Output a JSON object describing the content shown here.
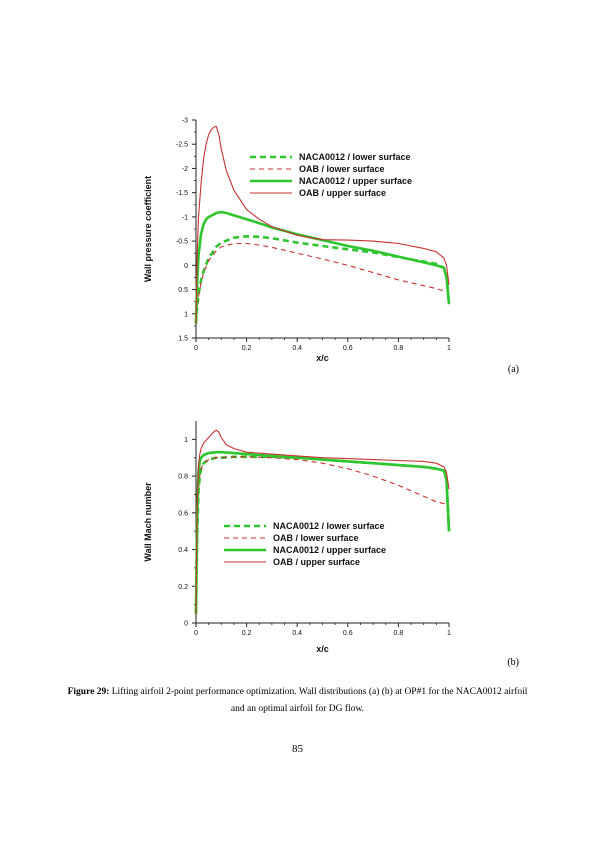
{
  "figure": {
    "label_a": "(a)",
    "label_b": "(b)",
    "caption_bold": "Figure 29:",
    "caption_text": " Lifting airfoil 2-point performance optimization. Wall distributions (a) (b) at OP#1 for the NACA0012 airfoil and an optimal airfoil for DG flow.",
    "page_number": "85"
  },
  "colors": {
    "naca": "#2fc52f",
    "oab": "#c83232"
  },
  "chart_data": [
    {
      "id": "a",
      "type": "line",
      "title": "",
      "xlabel": "x/c",
      "ylabel": "Wall pressure coefficient",
      "xlim": [
        0,
        1
      ],
      "ylim": [
        1.5,
        -3
      ],
      "y_inverted": true,
      "xticks": [
        "0",
        "0.2",
        "0.4",
        "0.6",
        "0.8",
        "1"
      ],
      "yticks": [
        "-3",
        "-2.5",
        "-2",
        "-1.5",
        "-1",
        "-0.5",
        "0",
        "0.5",
        "1",
        "1.5"
      ],
      "legend_position": "top-right",
      "series": [
        {
          "name": "NACA0012 / lower surface",
          "color": "#2fc52f",
          "style": "dashed",
          "weight": "bold",
          "x": [
            0,
            0.002,
            0.005,
            0.01,
            0.02,
            0.03,
            0.05,
            0.08,
            0.1,
            0.15,
            0.2,
            0.25,
            0.3,
            0.4,
            0.5,
            0.6,
            0.7,
            0.8,
            0.9,
            0.95,
            0.98,
            0.99,
            1.0
          ],
          "y": [
            1.2,
            1.0,
            0.85,
            0.6,
            0.3,
            0.12,
            -0.15,
            -0.38,
            -0.47,
            -0.57,
            -0.6,
            -0.59,
            -0.56,
            -0.47,
            -0.4,
            -0.33,
            -0.27,
            -0.17,
            -0.08,
            -0.03,
            0.05,
            0.2,
            0.8
          ]
        },
        {
          "name": "OAB / lower surface",
          "color": "#c83232",
          "style": "dashed",
          "weight": "thin",
          "x": [
            0,
            0.002,
            0.005,
            0.01,
            0.02,
            0.03,
            0.05,
            0.08,
            0.1,
            0.15,
            0.2,
            0.25,
            0.3,
            0.4,
            0.5,
            0.6,
            0.7,
            0.8,
            0.9,
            0.95,
            0.98,
            1.0
          ],
          "y": [
            1.2,
            1.0,
            0.85,
            0.65,
            0.35,
            0.15,
            -0.1,
            -0.3,
            -0.38,
            -0.45,
            -0.45,
            -0.42,
            -0.37,
            -0.25,
            -0.13,
            0.0,
            0.15,
            0.3,
            0.42,
            0.48,
            0.53,
            0.55
          ]
        },
        {
          "name": "NACA0012 / upper surface",
          "color": "#2fc52f",
          "style": "solid",
          "weight": "bold",
          "x": [
            0,
            0.002,
            0.005,
            0.01,
            0.02,
            0.03,
            0.04,
            0.05,
            0.07,
            0.08,
            0.1,
            0.12,
            0.15,
            0.2,
            0.25,
            0.3,
            0.4,
            0.5,
            0.6,
            0.7,
            0.8,
            0.9,
            0.95,
            0.98,
            0.99,
            1.0
          ],
          "y": [
            1.2,
            0.8,
            0.3,
            -0.2,
            -0.65,
            -0.85,
            -0.95,
            -1.0,
            -1.05,
            -1.08,
            -1.1,
            -1.08,
            -1.03,
            -0.95,
            -0.87,
            -0.78,
            -0.64,
            -0.52,
            -0.4,
            -0.3,
            -0.18,
            -0.06,
            0.0,
            0.05,
            0.25,
            0.8
          ]
        },
        {
          "name": "OAB / upper surface",
          "color": "#c83232",
          "style": "solid",
          "weight": "thin",
          "x": [
            0,
            0.002,
            0.005,
            0.01,
            0.02,
            0.03,
            0.04,
            0.05,
            0.06,
            0.07,
            0.08,
            0.09,
            0.1,
            0.12,
            0.15,
            0.2,
            0.25,
            0.3,
            0.4,
            0.5,
            0.6,
            0.7,
            0.8,
            0.9,
            0.95,
            0.98,
            0.99,
            1.0
          ],
          "y": [
            1.2,
            0.5,
            -0.3,
            -1.0,
            -1.7,
            -2.2,
            -2.5,
            -2.7,
            -2.8,
            -2.85,
            -2.87,
            -2.7,
            -2.4,
            -1.95,
            -1.55,
            -1.15,
            -0.95,
            -0.8,
            -0.62,
            -0.53,
            -0.52,
            -0.5,
            -0.45,
            -0.35,
            -0.28,
            -0.15,
            0.0,
            0.4
          ]
        }
      ]
    },
    {
      "id": "b",
      "type": "line",
      "title": "",
      "xlabel": "x/c",
      "ylabel": "Wall Mach number",
      "xlim": [
        0,
        1
      ],
      "ylim": [
        0,
        1.1
      ],
      "xticks": [
        "0",
        "0.2",
        "0.4",
        "0.6",
        "0.8",
        "1"
      ],
      "yticks": [
        "0",
        "0.2",
        "0.4",
        "0.6",
        "0.8",
        "1"
      ],
      "legend_position": "center-right",
      "series": [
        {
          "name": "NACA0012 / lower surface",
          "color": "#2fc52f",
          "style": "dashed",
          "weight": "bold",
          "x": [
            0,
            0.002,
            0.005,
            0.01,
            0.015,
            0.02,
            0.03,
            0.05,
            0.08,
            0.1,
            0.15,
            0.2,
            0.3,
            0.4,
            0.5,
            0.6,
            0.7,
            0.8,
            0.9,
            0.95,
            0.98,
            0.99,
            1.0
          ],
          "y": [
            0.05,
            0.25,
            0.5,
            0.72,
            0.8,
            0.84,
            0.87,
            0.89,
            0.9,
            0.9,
            0.905,
            0.905,
            0.905,
            0.9,
            0.89,
            0.88,
            0.87,
            0.86,
            0.85,
            0.84,
            0.83,
            0.78,
            0.5
          ]
        },
        {
          "name": "OAB / lower surface",
          "color": "#c83232",
          "style": "dashed",
          "weight": "thin",
          "x": [
            0,
            0.002,
            0.005,
            0.01,
            0.015,
            0.02,
            0.03,
            0.05,
            0.08,
            0.1,
            0.15,
            0.2,
            0.3,
            0.4,
            0.5,
            0.6,
            0.7,
            0.8,
            0.9,
            0.95,
            0.98,
            1.0
          ],
          "y": [
            0.05,
            0.25,
            0.5,
            0.72,
            0.8,
            0.84,
            0.87,
            0.89,
            0.9,
            0.9,
            0.905,
            0.905,
            0.9,
            0.89,
            0.87,
            0.84,
            0.8,
            0.75,
            0.69,
            0.66,
            0.65,
            0.67
          ]
        },
        {
          "name": "NACA0012 / upper surface",
          "color": "#2fc52f",
          "style": "solid",
          "weight": "bold",
          "x": [
            0,
            0.002,
            0.005,
            0.01,
            0.015,
            0.02,
            0.03,
            0.05,
            0.08,
            0.1,
            0.15,
            0.2,
            0.3,
            0.4,
            0.5,
            0.6,
            0.7,
            0.8,
            0.9,
            0.95,
            0.98,
            0.99,
            1.0
          ],
          "y": [
            0.05,
            0.3,
            0.6,
            0.82,
            0.88,
            0.9,
            0.915,
            0.925,
            0.93,
            0.93,
            0.925,
            0.92,
            0.91,
            0.9,
            0.89,
            0.88,
            0.87,
            0.86,
            0.85,
            0.84,
            0.83,
            0.78,
            0.5
          ]
        },
        {
          "name": "OAB / upper surface",
          "color": "#c83232",
          "style": "solid",
          "weight": "thin",
          "x": [
            0,
            0.002,
            0.005,
            0.01,
            0.015,
            0.02,
            0.03,
            0.05,
            0.07,
            0.08,
            0.09,
            0.1,
            0.12,
            0.15,
            0.2,
            0.3,
            0.4,
            0.5,
            0.6,
            0.7,
            0.8,
            0.9,
            0.95,
            0.98,
            0.99,
            1.0
          ],
          "y": [
            0.05,
            0.35,
            0.65,
            0.86,
            0.92,
            0.95,
            0.98,
            1.01,
            1.04,
            1.05,
            1.04,
            1.01,
            0.97,
            0.95,
            0.93,
            0.92,
            0.91,
            0.9,
            0.895,
            0.89,
            0.885,
            0.88,
            0.87,
            0.85,
            0.82,
            0.73
          ]
        }
      ]
    }
  ]
}
